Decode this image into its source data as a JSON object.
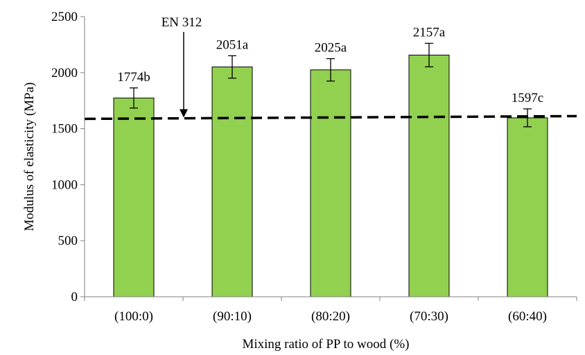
{
  "chart_data": {
    "type": "bar",
    "categories": [
      "(100:0)",
      "(90:10)",
      "(80:20)",
      "(70:30)",
      "(60:40)"
    ],
    "series": [
      {
        "values": [
          1774,
          2051,
          2025,
          2157,
          1597
        ],
        "errors": [
          90,
          100,
          100,
          105,
          80
        ],
        "labels": [
          "1774b",
          "2051a",
          "2025a",
          "2157a",
          "1597c"
        ],
        "color": "#92d050"
      }
    ],
    "xlabel": "Mixing ratio of PP to wood (%)",
    "ylabel": "Modulus of elasticity (MPa)",
    "ylim": [
      0,
      2500
    ],
    "yticks": [
      0,
      500,
      1000,
      1500,
      2000,
      2500
    ],
    "grid": false,
    "reference_line": {
      "value": 1600,
      "label": "EN 312",
      "style": "dashed",
      "color": "#000000"
    }
  }
}
